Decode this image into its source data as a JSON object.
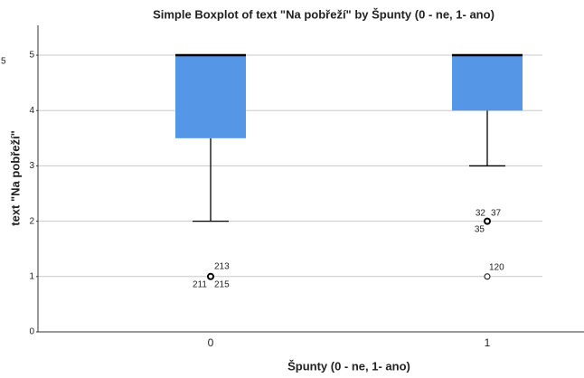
{
  "chart_data": {
    "type": "box",
    "title": "Simple Boxplot of text \"Na pobřeží\" by Špunty (0 - ne, 1- ano)",
    "corner_label": "5",
    "y_label": "text \"Na pobřeží\"",
    "x_label": "Špunty (0 - ne, 1- ano)",
    "categories": [
      "0",
      "1"
    ],
    "color": "#5596e6",
    "ylim": [
      0,
      5.54
    ],
    "yticks": [
      0,
      1,
      2,
      3,
      4,
      5
    ],
    "grid": true,
    "boxes": [
      {
        "min": 2,
        "q1": 3.5,
        "median": 5,
        "q3": 5,
        "max": 5,
        "outliers": [
          {
            "value": 1,
            "labels": [
              "213",
              "211",
              "215"
            ]
          }
        ]
      },
      {
        "min": 3,
        "q1": 4,
        "median": 5,
        "q3": 5,
        "max": 5,
        "outliers": [
          {
            "value": 2,
            "labels": [
              "32",
              "37",
              "35"
            ]
          },
          {
            "value": 1,
            "labels": [
              "120"
            ]
          }
        ]
      }
    ]
  }
}
